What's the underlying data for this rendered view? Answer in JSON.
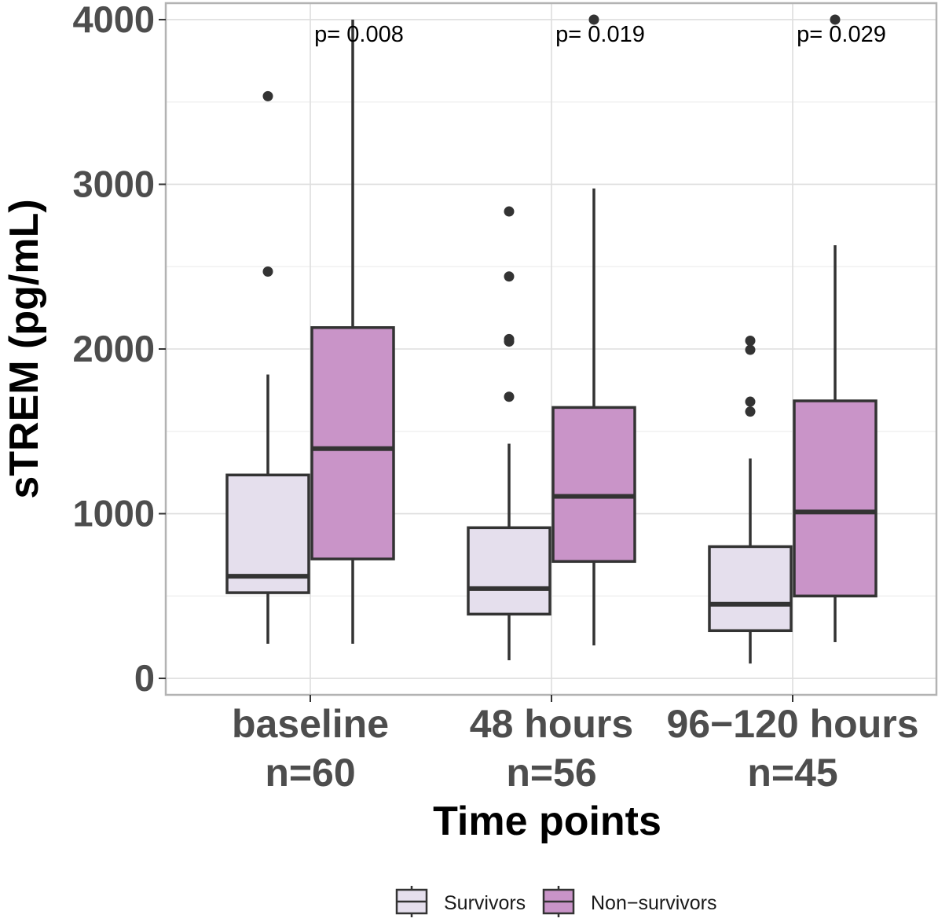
{
  "chart_data": {
    "type": "boxplot",
    "xlabel": "Time points",
    "ylabel": "sTREM (pg/mL)",
    "ylim": [
      -100,
      4100
    ],
    "yticks": [
      0,
      1000,
      2000,
      3000,
      4000
    ],
    "grid": true,
    "legend_position": "bottom",
    "categories": [
      {
        "label": "baseline",
        "n_label": "n=60",
        "p_label": "p= 0.008"
      },
      {
        "label": "48 hours",
        "n_label": "n=56",
        "p_label": "p= 0.019"
      },
      {
        "label": "96−120 hours",
        "n_label": "n=45",
        "p_label": "p= 0.029"
      }
    ],
    "series": [
      {
        "name": "Survivors",
        "color": "#e5dfed",
        "boxes": [
          {
            "min": 210,
            "q1": 520,
            "median": 620,
            "q3": 1235,
            "max": 1845,
            "outliers": [
              2470,
              3535
            ]
          },
          {
            "min": 110,
            "q1": 390,
            "median": 545,
            "q3": 915,
            "max": 1425,
            "outliers": [
              1710,
              2045,
              2060,
              2440,
              2835
            ]
          },
          {
            "min": 90,
            "q1": 290,
            "median": 450,
            "q3": 800,
            "max": 1335,
            "outliers": [
              1620,
              1680,
              1995,
              2050
            ]
          }
        ]
      },
      {
        "name": "Non−survivors",
        "color": "#c994c8",
        "boxes": [
          {
            "min": 210,
            "q1": 725,
            "median": 1395,
            "q3": 2130,
            "max": 4000,
            "outliers": []
          },
          {
            "min": 200,
            "q1": 710,
            "median": 1105,
            "q3": 1645,
            "max": 2975,
            "outliers": [
              4000
            ]
          },
          {
            "min": 220,
            "q1": 500,
            "median": 1010,
            "q3": 1685,
            "max": 2630,
            "outliers": [
              4000
            ]
          }
        ]
      }
    ]
  }
}
